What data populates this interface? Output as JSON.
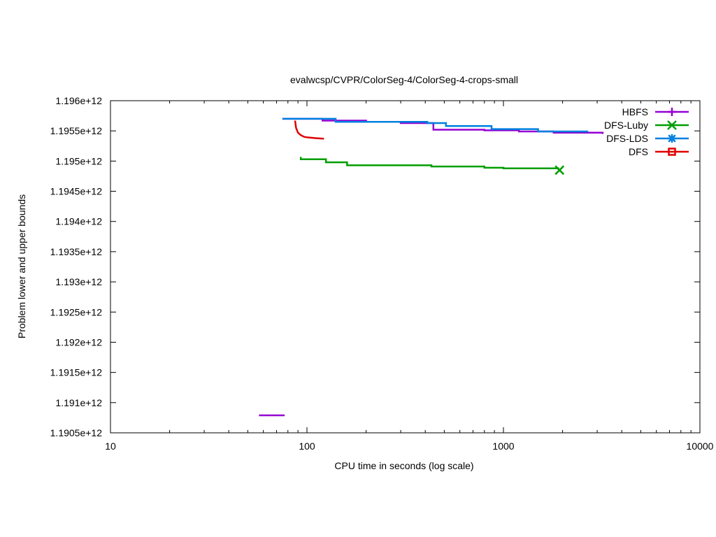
{
  "chart_data": {
    "type": "line",
    "title": "evalwcsp/CVPR/ColorSeg-4/ColorSeg-4-crops-small",
    "xlabel": "CPU time in seconds (log scale)",
    "ylabel": "Problem lower and upper bounds",
    "xscale": "log",
    "xlim": [
      10,
      10000
    ],
    "ylim": [
      1190500000000,
      1196000000000
    ],
    "x_ticks": [
      10,
      100,
      1000,
      10000
    ],
    "x_tick_labels": [
      "10",
      "100",
      "1000",
      "10000"
    ],
    "y_ticks": [
      1190500000000,
      1191000000000,
      1191500000000,
      1192000000000,
      1192500000000,
      1193000000000,
      1193500000000,
      1194000000000,
      1194500000000,
      1195000000000,
      1195500000000,
      1196000000000
    ],
    "y_tick_labels": [
      "1.1905e+12",
      "1.191e+12",
      "1.1915e+12",
      "1.192e+12",
      "1.1925e+12",
      "1.193e+12",
      "1.1935e+12",
      "1.194e+12",
      "1.1945e+12",
      "1.195e+12",
      "1.1955e+12",
      "1.196e+12"
    ],
    "grid": false,
    "legend_position": "top-right",
    "series": [
      {
        "name": "HBFS",
        "color": "#9400d3",
        "marker": "plus",
        "step": true,
        "segments": [
          [
            [
              57,
              1190790000000
            ],
            [
              77,
              1190790000000
            ]
          ],
          [
            [
              75,
              1195700000000
            ],
            [
              120,
              1195670000000
            ],
            [
              200,
              1195650000000
            ],
            [
              300,
              1195630000000
            ],
            [
              440,
              1195630000000
            ],
            [
              440,
              1195520000000
            ],
            [
              600,
              1195520000000
            ],
            [
              800,
              1195510000000
            ],
            [
              1200,
              1195490000000
            ],
            [
              1800,
              1195470000000
            ],
            [
              3200,
              1195450000000
            ]
          ]
        ]
      },
      {
        "name": "DFS-Luby",
        "color": "#009e00",
        "marker": "x",
        "step": true,
        "segments": [
          [
            [
              93,
              1195070000000
            ],
            [
              93,
              1195030000000
            ],
            [
              125,
              1195030000000
            ],
            [
              125,
              1194980000000
            ],
            [
              160,
              1194980000000
            ],
            [
              160,
              1194930000000
            ],
            [
              380,
              1194930000000
            ],
            [
              430,
              1194910000000
            ],
            [
              780,
              1194910000000
            ],
            [
              800,
              1194890000000
            ],
            [
              1000,
              1194880000000
            ],
            [
              1900,
              1194860000000
            ]
          ]
        ],
        "end_marker": [
          1930,
          1194850000000
        ]
      },
      {
        "name": "DFS-LDS",
        "color": "#0080e0",
        "marker": "star",
        "step": true,
        "segments": [
          [
            [
              75,
              1195700000000
            ],
            [
              140,
              1195700000000
            ],
            [
              140,
              1195650000000
            ],
            [
              380,
              1195650000000
            ],
            [
              410,
              1195630000000
            ],
            [
              510,
              1195630000000
            ],
            [
              510,
              1195580000000
            ],
            [
              870,
              1195580000000
            ],
            [
              870,
              1195530000000
            ],
            [
              1500,
              1195530000000
            ],
            [
              1500,
              1195490000000
            ],
            [
              2700,
              1195490000000
            ]
          ]
        ]
      },
      {
        "name": "DFS",
        "color": "#e00000",
        "marker": "square",
        "step": false,
        "segments": [
          [
            [
              87,
              1195670000000
            ],
            [
              88,
              1195550000000
            ],
            [
              90,
              1195470000000
            ],
            [
              93,
              1195430000000
            ],
            [
              97,
              1195400000000
            ],
            [
              102,
              1195390000000
            ],
            [
              110,
              1195380000000
            ],
            [
              122,
              1195370000000
            ]
          ]
        ]
      }
    ]
  }
}
